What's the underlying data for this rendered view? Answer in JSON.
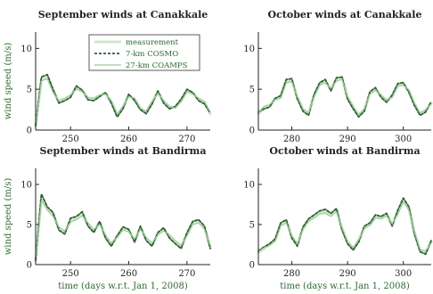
{
  "figure": {
    "xlabel": "time (days w.r.t. Jan 1, 2008)",
    "ylabel": "wind speed (m/s)",
    "colors": {
      "measurement": "#cfe8cf",
      "cosmo": "#2f5f2f",
      "coamps": "#9ecb9e",
      "axis": "#222222"
    },
    "legend": {
      "location": "top-right of first panel",
      "entries": [
        "measurement",
        "7-km COSMO",
        "27-km COAMPS"
      ]
    }
  },
  "chart_data": [
    {
      "type": "line",
      "title": "September winds at Canakkale",
      "xlabel": "",
      "ylabel": "wind speed (m/s)",
      "xlim": [
        244,
        274
      ],
      "ylim": [
        0,
        12
      ],
      "xticks": [
        250,
        260,
        270
      ],
      "yticks": [
        0,
        5,
        10
      ],
      "x": [
        244,
        245,
        246,
        247,
        248,
        249,
        250,
        251,
        252,
        253,
        254,
        255,
        256,
        257,
        258,
        259,
        260,
        261,
        262,
        263,
        264,
        265,
        266,
        267,
        268,
        269,
        270,
        271,
        272,
        273,
        274
      ],
      "series": [
        {
          "name": "measurement",
          "values": [
            0.5,
            6.2,
            6.5,
            4.8,
            3.5,
            3.8,
            4.2,
            5.2,
            4.8,
            3.9,
            3.8,
            4.2,
            4.5,
            3.5,
            1.8,
            2.8,
            4.2,
            3.8,
            2.6,
            2.2,
            3.4,
            4.6,
            3.5,
            2.8,
            2.8,
            3.6,
            4.8,
            4.5,
            3.8,
            3.4,
            2.0
          ]
        },
        {
          "name": "7-km COSMO",
          "values": [
            0.6,
            6.5,
            6.8,
            5.0,
            3.3,
            3.6,
            4.0,
            5.4,
            4.9,
            3.7,
            3.6,
            4.1,
            4.6,
            3.3,
            1.6,
            2.6,
            4.4,
            3.6,
            2.5,
            2.0,
            3.2,
            4.8,
            3.3,
            2.6,
            2.9,
            3.8,
            5.0,
            4.6,
            3.6,
            3.2,
            2.1
          ]
        },
        {
          "name": "27-km COAMPS",
          "values": [
            0.7,
            6.0,
            6.3,
            4.6,
            3.6,
            3.9,
            4.3,
            5.0,
            4.7,
            4.0,
            3.9,
            4.3,
            4.4,
            3.6,
            2.0,
            2.9,
            4.1,
            3.9,
            2.7,
            2.3,
            3.5,
            4.5,
            3.6,
            2.9,
            2.7,
            3.5,
            4.7,
            4.4,
            3.9,
            3.5,
            2.2
          ]
        }
      ]
    },
    {
      "type": "line",
      "title": "October winds at Canakkale",
      "xlabel": "",
      "ylabel": "",
      "xlim": [
        274,
        305
      ],
      "ylim": [
        0,
        12
      ],
      "xticks": [
        280,
        290,
        300
      ],
      "yticks": [
        0,
        5,
        10
      ],
      "x": [
        274,
        275,
        276,
        277,
        278,
        279,
        280,
        281,
        282,
        283,
        284,
        285,
        286,
        287,
        288,
        289,
        290,
        291,
        292,
        293,
        294,
        295,
        296,
        297,
        298,
        299,
        300,
        301,
        302,
        303,
        304,
        305
      ],
      "series": [
        {
          "name": "measurement",
          "values": [
            2.0,
            2.8,
            3.0,
            3.8,
            4.0,
            6.0,
            6.1,
            4.0,
            2.5,
            2.0,
            4.2,
            5.6,
            6.0,
            5.0,
            6.2,
            6.4,
            4.0,
            2.8,
            1.8,
            2.5,
            4.5,
            5.0,
            4.2,
            3.6,
            4.1,
            5.5,
            5.6,
            4.8,
            3.2,
            2.0,
            2.4,
            3.3
          ]
        },
        {
          "name": "7-km COSMO",
          "values": [
            2.2,
            2.6,
            2.8,
            3.9,
            4.2,
            6.2,
            6.3,
            3.8,
            2.3,
            1.8,
            4.4,
            5.8,
            6.2,
            4.8,
            6.4,
            6.5,
            3.8,
            2.6,
            1.6,
            2.3,
            4.7,
            5.2,
            4.0,
            3.4,
            4.3,
            5.7,
            5.8,
            4.6,
            3.0,
            1.8,
            2.2,
            3.5
          ]
        },
        {
          "name": "27-km COAMPS",
          "values": [
            2.1,
            2.9,
            3.1,
            3.7,
            3.9,
            5.8,
            5.9,
            4.1,
            2.6,
            2.1,
            4.1,
            5.5,
            5.8,
            5.1,
            6.0,
            6.2,
            4.1,
            2.9,
            1.9,
            2.6,
            4.4,
            4.9,
            4.3,
            3.7,
            4.0,
            5.4,
            5.5,
            4.9,
            3.3,
            2.1,
            2.5,
            3.2
          ]
        }
      ]
    },
    {
      "type": "line",
      "title": "September winds at Bandirma",
      "xlabel": "time (days w.r.t. Jan 1, 2008)",
      "ylabel": "wind speed (m/s)",
      "xlim": [
        244,
        274
      ],
      "ylim": [
        0,
        12
      ],
      "xticks": [
        250,
        260,
        270
      ],
      "yticks": [
        0,
        5,
        10
      ],
      "x": [
        244,
        245,
        246,
        247,
        248,
        249,
        250,
        251,
        252,
        253,
        254,
        255,
        256,
        257,
        258,
        259,
        260,
        261,
        262,
        263,
        264,
        265,
        266,
        267,
        268,
        269,
        270,
        271,
        272,
        273,
        274
      ],
      "series": [
        {
          "name": "measurement",
          "values": [
            0.5,
            8.5,
            7.0,
            6.2,
            4.5,
            4.0,
            5.5,
            5.8,
            6.3,
            5.0,
            4.2,
            5.2,
            3.5,
            2.5,
            3.5,
            4.5,
            4.2,
            3.0,
            4.6,
            3.2,
            2.5,
            3.8,
            4.4,
            3.5,
            2.8,
            2.2,
            3.8,
            5.2,
            5.4,
            4.6,
            2.2
          ]
        },
        {
          "name": "7-km COSMO",
          "values": [
            0.6,
            8.8,
            7.2,
            6.5,
            4.3,
            3.8,
            5.8,
            6.0,
            6.6,
            4.8,
            4.0,
            5.4,
            3.3,
            2.3,
            3.6,
            4.7,
            4.4,
            2.8,
            4.8,
            3.0,
            2.3,
            4.0,
            4.6,
            3.3,
            2.6,
            2.0,
            4.0,
            5.4,
            5.6,
            4.8,
            2.0
          ]
        },
        {
          "name": "27-km COAMPS",
          "values": [
            0.7,
            8.0,
            6.8,
            6.0,
            4.7,
            4.2,
            5.3,
            5.6,
            6.1,
            5.2,
            4.4,
            5.0,
            3.7,
            2.7,
            3.4,
            4.3,
            4.1,
            3.2,
            4.4,
            3.4,
            2.7,
            3.7,
            4.2,
            3.7,
            3.0,
            2.4,
            3.6,
            5.0,
            5.2,
            4.4,
            2.4
          ]
        }
      ]
    },
    {
      "type": "line",
      "title": "October winds at Bandirma",
      "xlabel": "time (days w.r.t. Jan 1, 2008)",
      "ylabel": "",
      "xlim": [
        274,
        305
      ],
      "ylim": [
        0,
        12
      ],
      "xticks": [
        280,
        290,
        300
      ],
      "yticks": [
        0,
        5,
        10
      ],
      "x": [
        274,
        275,
        276,
        277,
        278,
        279,
        280,
        281,
        282,
        283,
        284,
        285,
        286,
        287,
        288,
        289,
        290,
        291,
        292,
        293,
        294,
        295,
        296,
        297,
        298,
        299,
        300,
        301,
        302,
        303,
        304,
        305
      ],
      "series": [
        {
          "name": "measurement",
          "values": [
            1.5,
            2.0,
            2.5,
            3.0,
            5.0,
            5.4,
            3.5,
            2.5,
            4.5,
            5.5,
            6.0,
            6.5,
            6.6,
            6.2,
            6.8,
            4.5,
            2.8,
            2.0,
            3.0,
            4.6,
            5.0,
            6.0,
            5.8,
            6.2,
            5.0,
            6.5,
            8.0,
            7.0,
            4.0,
            1.8,
            1.5,
            2.8
          ]
        },
        {
          "name": "7-km COSMO",
          "values": [
            1.7,
            2.2,
            2.6,
            3.2,
            5.2,
            5.6,
            3.3,
            2.3,
            4.7,
            5.7,
            6.2,
            6.7,
            6.9,
            6.4,
            7.0,
            4.3,
            2.6,
            1.8,
            2.8,
            4.8,
            5.2,
            6.2,
            6.0,
            6.4,
            4.8,
            6.8,
            8.3,
            7.2,
            3.8,
            1.6,
            1.3,
            3.0
          ]
        },
        {
          "name": "27-km COAMPS",
          "values": [
            1.6,
            2.1,
            2.4,
            2.9,
            4.8,
            5.2,
            3.6,
            2.6,
            4.4,
            5.4,
            5.8,
            6.3,
            6.4,
            6.0,
            6.6,
            4.6,
            2.9,
            2.1,
            3.1,
            4.5,
            4.9,
            5.8,
            5.7,
            6.1,
            5.1,
            6.3,
            7.8,
            6.8,
            4.1,
            1.9,
            1.7,
            2.7
          ]
        }
      ]
    }
  ]
}
